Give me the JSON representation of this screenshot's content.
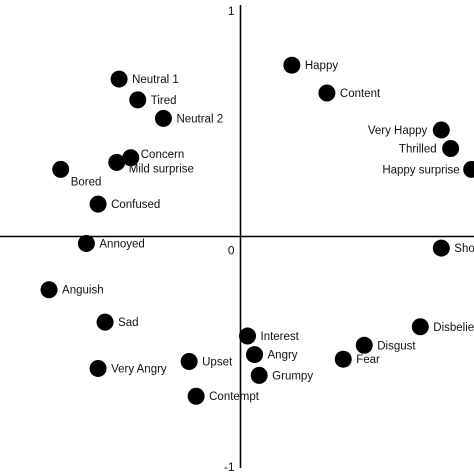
{
  "chart_data": {
    "type": "scatter",
    "title": "",
    "xlabel": "",
    "ylabel": "",
    "grid": false,
    "marker_color": "#000000",
    "xlim": [
      -1.03,
      1.0
    ],
    "ylim": [
      -1.0,
      1.0
    ],
    "ticks": {
      "y_top": "1",
      "origin": "0",
      "y_bottom": "-1"
    },
    "points": [
      {
        "label": "Neutral 1",
        "x": -0.52,
        "y": 0.68
      },
      {
        "label": "Tired",
        "x": -0.44,
        "y": 0.59
      },
      {
        "label": "Neutral 2",
        "x": -0.33,
        "y": 0.51
      },
      {
        "label": "Concern",
        "x": -0.47,
        "y": 0.34
      },
      {
        "label": "Mild surprise",
        "x": -0.53,
        "y": 0.32
      },
      {
        "label": "Bored",
        "x": -0.77,
        "y": 0.29
      },
      {
        "label": "Confused",
        "x": -0.61,
        "y": 0.14
      },
      {
        "label": "Annoyed",
        "x": -0.66,
        "y": -0.03
      },
      {
        "label": "Anguish",
        "x": -0.82,
        "y": -0.23
      },
      {
        "label": "Sad",
        "x": -0.58,
        "y": -0.37
      },
      {
        "label": "Very Angry",
        "x": -0.61,
        "y": -0.57
      },
      {
        "label": "Upset",
        "x": -0.22,
        "y": -0.54
      },
      {
        "label": "Contempt",
        "x": -0.19,
        "y": -0.69
      },
      {
        "label": "Interest",
        "x": 0.03,
        "y": -0.43
      },
      {
        "label": "Angry",
        "x": 0.06,
        "y": -0.51
      },
      {
        "label": "Grumpy",
        "x": 0.08,
        "y": -0.6
      },
      {
        "label": "Fear",
        "x": 0.44,
        "y": -0.53
      },
      {
        "label": "Disgust",
        "x": 0.53,
        "y": -0.47
      },
      {
        "label": "Disbelief",
        "x": 0.77,
        "y": -0.39
      },
      {
        "label": "Shock",
        "x": 0.86,
        "y": -0.05
      },
      {
        "label": "Happy",
        "x": 0.22,
        "y": 0.74
      },
      {
        "label": "Content",
        "x": 0.37,
        "y": 0.62
      },
      {
        "label": "Very Happy",
        "x": 0.86,
        "y": 0.46
      },
      {
        "label": "Thrilled",
        "x": 0.9,
        "y": 0.38
      },
      {
        "label": "Happy surprise",
        "x": 0.99,
        "y": 0.29
      }
    ]
  }
}
